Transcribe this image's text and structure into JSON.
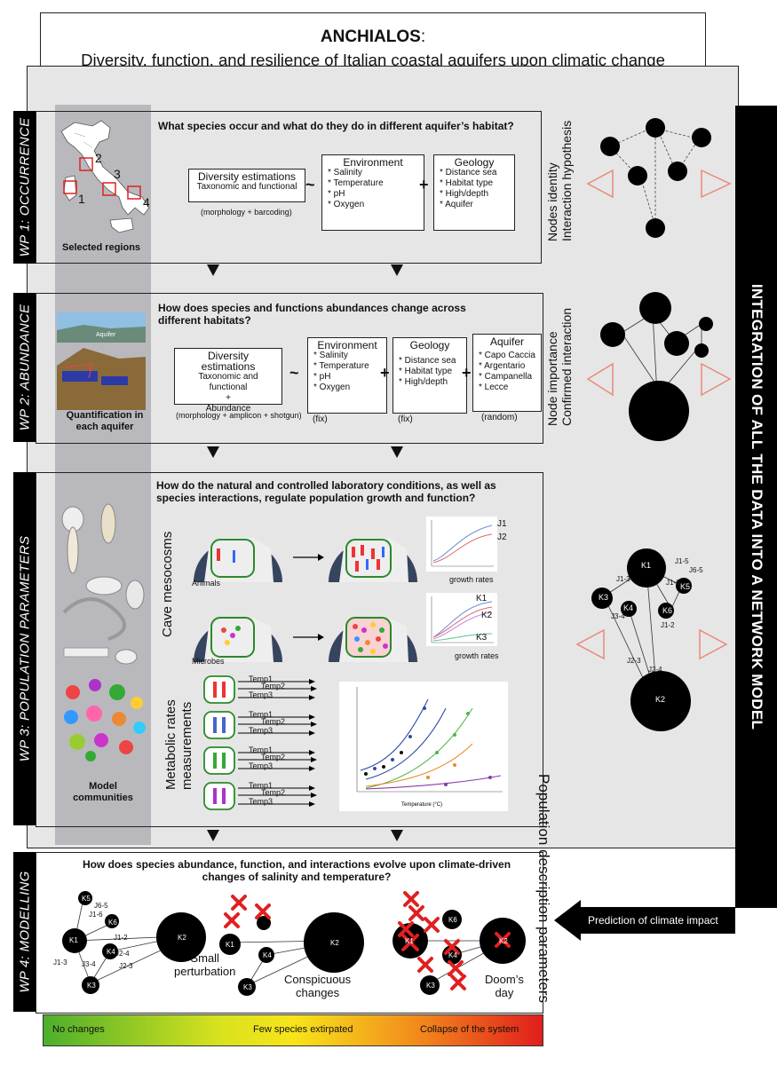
{
  "title": {
    "main": "ANCHIALOS",
    "colon": ":",
    "subtitle": "Diversity, function, and resilience of Italian coastal aquifers upon climatic change"
  },
  "right_bar": "INTEGRATION OF ALL THE DATA INTO A NETWORK MODEL",
  "prediction_label": "Prediction of climate impact",
  "wp1": {
    "label": "WP 1: OCCURRENCE",
    "question": "What species occur and what do they do in different aquifer’s habitat?",
    "regions_label": "Selected regions",
    "region_numbers": [
      "1",
      "2",
      "3",
      "4"
    ],
    "diversity_title": "Diversity estimations",
    "diversity_sub": "Taxonomic and functional",
    "diversity_note": "(morphology + barcoding)",
    "tilde": "~",
    "plus": "+",
    "environment_title": "Environment",
    "environment_items": [
      "* Salinity",
      "* Temperature",
      "* pH",
      "* Oxygen"
    ],
    "geology_title": "Geology",
    "geology_items": [
      "* Distance sea",
      "* Habitat type",
      "* High/depth",
      "* Aquifer"
    ],
    "side_text_1": "Nodes identity",
    "side_text_2": "Interaction hypothesis"
  },
  "wp2": {
    "label": "WP 2: ABUNDANCE",
    "question_line1": "How does species and functions abundances change across",
    "question_line2": "different habitats?",
    "image_label_1": "Quantification in",
    "image_label_2": "each aquifer",
    "aquifer_tag": "Aquifer",
    "diversity_title": "Diversity estimations",
    "diversity_sub": "Taxonomic and functional",
    "diversity_plus": "+",
    "diversity_abund": "Abundance",
    "diversity_note": "(morphology + amplicon +  shotgun)",
    "tilde": "~",
    "plus": "+",
    "environment_title": "Environment",
    "environment_items": [
      "* Salinity",
      "* Temperature",
      "* pH",
      "* Oxygen"
    ],
    "environment_note": "(fix)",
    "geology_title": "Geology",
    "geology_items": [
      "* Distance sea",
      "* Habitat type",
      "* High/depth"
    ],
    "geology_note": "(fix)",
    "aquifer_title": "Aquifer",
    "aquifer_items": [
      "* Capo Caccia",
      "* Argentario",
      "* Campanella",
      "* Lecce"
    ],
    "aquifer_note": "(random)",
    "side_text_1": "Node importance",
    "side_text_2": "Confirmed interaction"
  },
  "wp3": {
    "label": "WP 3: POPULATION PARAMETERS",
    "question_line1": "How do the natural and controlled laboratory conditions, as well as",
    "question_line2": "species interactions, regulate population growth and function?",
    "cave_label": "Cave mesocosms",
    "animals_label": "Animals",
    "microbes_label": "Microbes",
    "growth_rates": "growth rates",
    "j_labels": [
      "J1",
      "J2"
    ],
    "k_labels": [
      "K1",
      "K2",
      "K3"
    ],
    "metabolic_label_1": "Metabolic rates",
    "metabolic_label_2": "measurements",
    "temps": [
      "Temp1",
      "Temp2",
      "Temp3"
    ],
    "model_label_1": "Model",
    "model_label_2": "communities",
    "plot_xlabel": "Temperature (°C)",
    "side_text": "Population description parameters",
    "net_nodes": [
      "K1",
      "K3",
      "K4",
      "K5",
      "K6",
      "K2"
    ],
    "net_edges": [
      "J1-3",
      "J1-6",
      "J6-5",
      "J3-4",
      "J1-5",
      "J2-3",
      "J2-4",
      "J1-2"
    ]
  },
  "wp4": {
    "label": "WP 4: MODELLING",
    "question_line1": "How does species abundance, function, and interactions evolve upon climate-driven",
    "question_line2": "changes of salinity and temperature?",
    "scenario1": [
      "Small",
      "perturbation"
    ],
    "scenario2": [
      "Conspicuous",
      "changes"
    ],
    "scenario3": [
      "Doom’s",
      "day"
    ],
    "nodes": [
      "K1",
      "K2",
      "K3",
      "K4",
      "K5",
      "K6"
    ],
    "edges": [
      "J1-2",
      "J1-6",
      "J6-5",
      "J3-4",
      "J2-3",
      "J2-4",
      "J1-3"
    ]
  },
  "scale": {
    "left": "No changes",
    "mid": "Few species extirpated",
    "right": "Collapse of the system"
  },
  "colors": {
    "gray_column": "#b9b9bd",
    "background": "#e6e6e6",
    "red_cross": "#e02020",
    "triangle": "#e88a78"
  }
}
